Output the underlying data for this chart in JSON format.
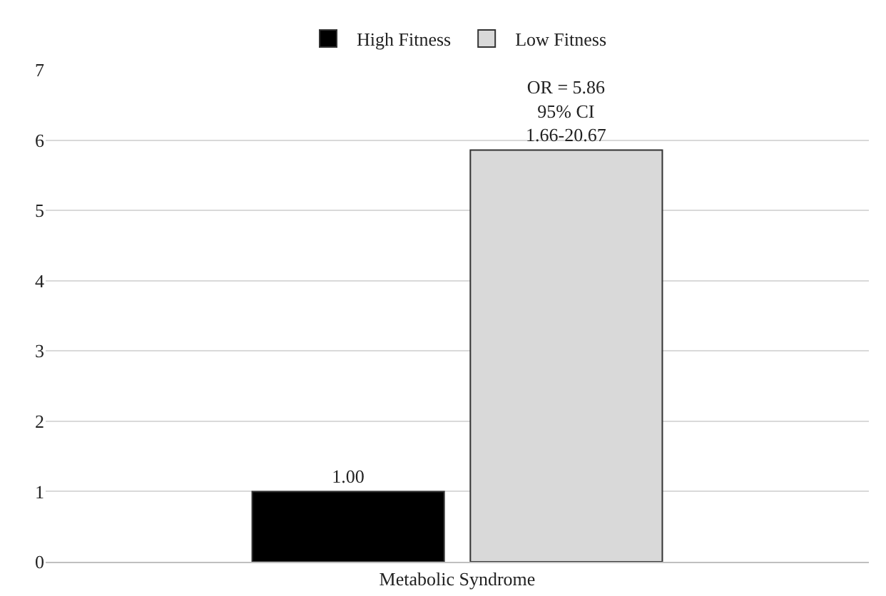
{
  "chart_data": {
    "type": "bar",
    "categories": [
      "Metabolic Syndrome"
    ],
    "series": [
      {
        "name": "High Fitness",
        "color": "#000000",
        "values": [
          1.0
        ],
        "value_labels": [
          "1.00"
        ]
      },
      {
        "name": "Low Fitness",
        "color": "#d9d9d9",
        "values": [
          5.86
        ],
        "value_labels": [
          "OR = 5.86\n95% CI\n1.66-20.67"
        ]
      }
    ],
    "ylim": [
      0,
      7
    ],
    "yticks": [
      0,
      1,
      2,
      3,
      4,
      5,
      6,
      7
    ],
    "grid": "y",
    "legend": "top"
  }
}
